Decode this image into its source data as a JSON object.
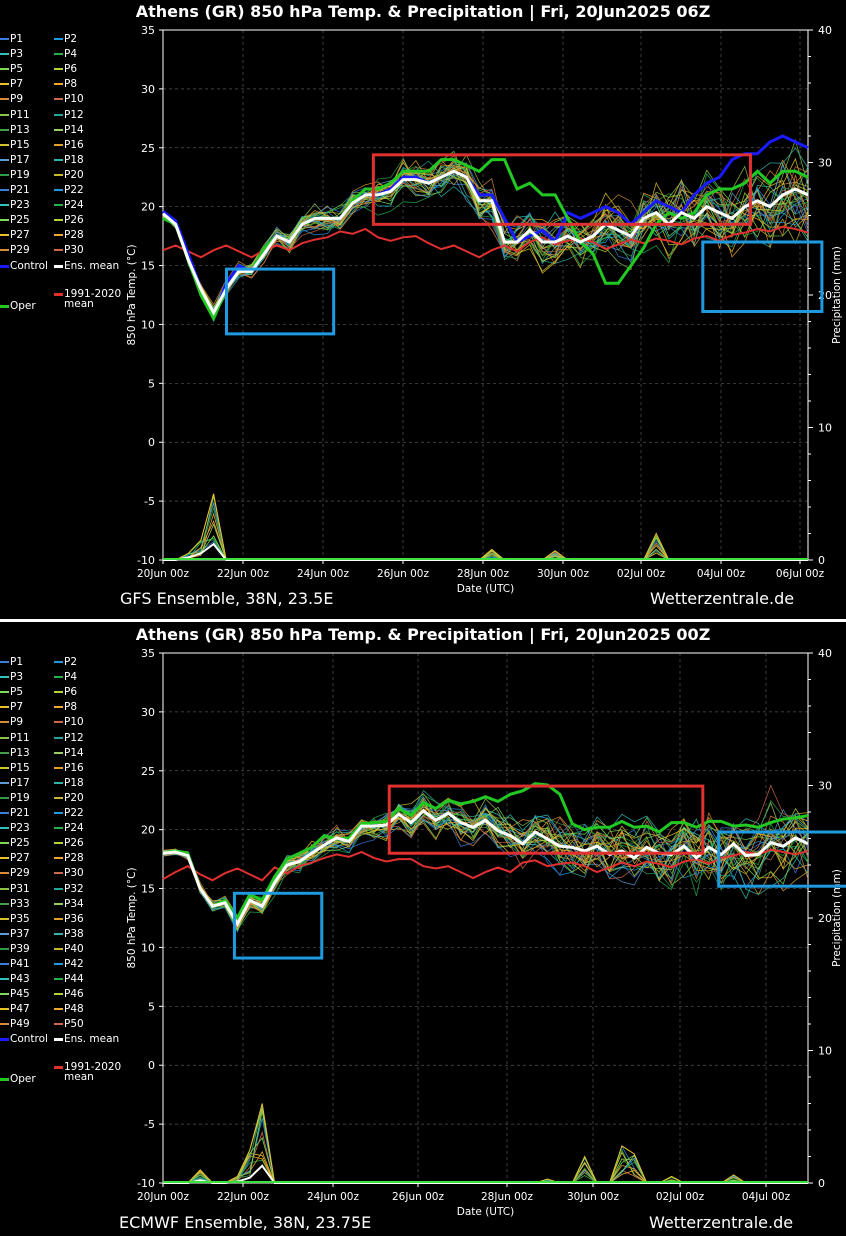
{
  "chart_data": [
    {
      "type": "line",
      "title": "Athens  (GR)  850 hPa Temp. & Precipitation | Fri, 20Jun2025 06Z",
      "ylabel": "850 hPa Temp. (°C)",
      "y2label": "Precipitation (mm)",
      "xlabel": "Date (UTC)",
      "ylim": [
        -10,
        35
      ],
      "y2lim": [
        0,
        40
      ],
      "y_ticks": [
        "35",
        "30",
        "25",
        "20",
        "15",
        "10",
        "5",
        "0",
        "-5",
        "-10"
      ],
      "y2_ticks": [
        "40",
        "30",
        "20",
        "10",
        "0"
      ],
      "x_ticks": [
        "20Jun 00z",
        "22Jun 00z",
        "24Jun 00z",
        "26Jun 00z",
        "28Jun 00z",
        "30Jun 00z",
        "02Jul 00z",
        "04Jul 00z",
        "06Jul 00z"
      ],
      "grid": true,
      "footer_left": "GFS Ensemble, 38N, 23.5E",
      "footer_right": "Wetterzentrale.de",
      "legend": {
        "members": [
          "P1",
          "P2",
          "P3",
          "P4",
          "P5",
          "P6",
          "P7",
          "P8",
          "P9",
          "P10",
          "P11",
          "P12",
          "P13",
          "P14",
          "P15",
          "P16",
          "P17",
          "P18",
          "P19",
          "P20",
          "P21",
          "P22",
          "P23",
          "P24",
          "P25",
          "P26",
          "P27",
          "P28",
          "P29",
          "P30"
        ],
        "control": "Control",
        "ens_mean": "Ens. mean",
        "clim": "1991-2020",
        "clim2": "mean",
        "oper": "Oper"
      },
      "series": {
        "control": [
          19.6,
          18.8,
          16,
          13,
          10.5,
          13.5,
          15,
          14.5,
          16.5,
          17.5,
          17,
          18.5,
          19,
          19,
          19,
          20.5,
          21,
          21,
          21.5,
          22.5,
          22.5,
          22,
          22.5,
          23,
          22.5,
          21,
          21,
          19,
          17,
          17.5,
          18,
          17,
          19.5,
          19,
          19.5,
          20,
          19.5,
          18.5,
          19.5,
          20.5,
          20,
          19.5,
          21,
          22,
          22.5,
          24,
          24.5,
          24.5,
          25.5,
          26,
          25.5,
          25
        ],
        "ens_mean": [
          19.4,
          18.5,
          15.5,
          13,
          11,
          13,
          14.5,
          14.5,
          16,
          17.5,
          17,
          18.5,
          19,
          19,
          19,
          20.3,
          21,
          21,
          21.3,
          22.3,
          22.3,
          22,
          22.5,
          23,
          22.5,
          20.5,
          20.5,
          17,
          17,
          18,
          17,
          17,
          17.5,
          17,
          17.5,
          18.5,
          18,
          17.5,
          19,
          19.5,
          18.5,
          19.5,
          19,
          20,
          19.5,
          19,
          20,
          20.5,
          20,
          21,
          21.5,
          21
        ],
        "oper": [
          19,
          18.5,
          15.5,
          12.5,
          10.5,
          13,
          14.5,
          14.5,
          16.5,
          17.5,
          17,
          18.5,
          19,
          19,
          19,
          20.5,
          21.5,
          21.5,
          22,
          23,
          23,
          23,
          24,
          24,
          23.5,
          23,
          24,
          24,
          21.5,
          22,
          21,
          21,
          19,
          17,
          16,
          13.5,
          13.5,
          15,
          16.5,
          18.5,
          19.5,
          19,
          19.5,
          21,
          21.5,
          21.5,
          22,
          23,
          22,
          23,
          23,
          22.5
        ],
        "clim": [
          16.3,
          16.7,
          16.2,
          15.7,
          16.3,
          16.7,
          16.2,
          15.7,
          16.3,
          16.7,
          16.3,
          16.9,
          17.2,
          17.4,
          17.9,
          17.7,
          18.1,
          17.4,
          17.1,
          17.4,
          17.5,
          16.9,
          16.4,
          16.7,
          16.2,
          15.7,
          16.3,
          16.7,
          16.2,
          17.0,
          17.4,
          16.8,
          17.1,
          17.3,
          17.0,
          16.4,
          16.8,
          17.2,
          16.9,
          17.3,
          17.1,
          16.8,
          17.3,
          17.5,
          17.1,
          17.6,
          17.8,
          18.1,
          17.9,
          18.3,
          18.1,
          17.8
        ],
        "precip_max": [
          0,
          0,
          0.5,
          1.5,
          5,
          0,
          0,
          0,
          0,
          0,
          0,
          0,
          0,
          0,
          0,
          0,
          0,
          0,
          0,
          0,
          0,
          0,
          0,
          0,
          0,
          0,
          0.8,
          0,
          0,
          0,
          0,
          0.7,
          0,
          0,
          0,
          0,
          0,
          0,
          0,
          2,
          0,
          0,
          0,
          0,
          0,
          0,
          0,
          0,
          0,
          0,
          0,
          0
        ],
        "precip_mean": [
          0,
          0,
          0.2,
          0.5,
          1.2,
          0,
          0,
          0,
          0,
          0,
          0,
          0,
          0,
          0,
          0,
          0,
          0,
          0,
          0,
          0,
          0,
          0,
          0,
          0,
          0,
          0,
          0,
          0,
          0,
          0,
          0,
          0,
          0,
          0,
          0,
          0,
          0,
          0,
          0,
          0,
          0,
          0,
          0,
          0,
          0,
          0,
          0,
          0,
          0,
          0,
          0,
          0
        ]
      },
      "boxes": [
        {
          "color": "#e03030",
          "x0": 5.3,
          "x1": 14.8,
          "y0": 18.5,
          "y1": 24.4
        },
        {
          "color": "#1e9be0",
          "x0": 1.6,
          "x1": 4.3,
          "y0": 9.2,
          "y1": 14.7
        },
        {
          "color": "#1e9be0",
          "x0": 13.6,
          "x1": 16.6,
          "y0": 11.1,
          "y1": 17
        },
        {
          "color": "#e03030",
          "x0": 17.5,
          "x1": 21.5,
          "y0": 18.9,
          "y1": 24
        }
      ]
    },
    {
      "type": "line",
      "title": "Athens  (GR)  850 hPa Temp. & Precipitation | Fri, 20Jun2025 00Z",
      "ylabel": "850 hPa Temp. (°C)",
      "y2label": "Precipitation (mm)",
      "xlabel": "Date (UTC)",
      "ylim": [
        -10,
        35
      ],
      "y2lim": [
        0,
        40
      ],
      "y_ticks": [
        "35",
        "30",
        "25",
        "20",
        "15",
        "10",
        "5",
        "0",
        "-5",
        "-10"
      ],
      "y2_ticks": [
        "40",
        "30",
        "20",
        "10",
        "0"
      ],
      "x_ticks": [
        "20Jun 00z",
        "22Jun 00z",
        "24Jun 00z",
        "26Jun 00z",
        "28Jun 00z",
        "30Jun 00z",
        "02Jul 00z",
        "04Jul 00z"
      ],
      "grid": true,
      "footer_left": "ECMWF Ensemble, 38N, 23.75E",
      "footer_right": "Wetterzentrale.de",
      "legend": {
        "members": [
          "P1",
          "P2",
          "P3",
          "P4",
          "P5",
          "P6",
          "P7",
          "P8",
          "P9",
          "P10",
          "P11",
          "P12",
          "P13",
          "P14",
          "P15",
          "P16",
          "P17",
          "P18",
          "P19",
          "P20",
          "P21",
          "P22",
          "P23",
          "P24",
          "P25",
          "P26",
          "P27",
          "P28",
          "P29",
          "P30",
          "P31",
          "P32",
          "P33",
          "P34",
          "P35",
          "P36",
          "P37",
          "P38",
          "P39",
          "P40",
          "P41",
          "P42",
          "P43",
          "P44",
          "P45",
          "P46",
          "P47",
          "P48",
          "P49",
          "P50"
        ],
        "control": "Control",
        "ens_mean": "Ens. mean",
        "clim": "1991-2020",
        "clim2": "mean",
        "oper": "Oper"
      },
      "series": {
        "ens_mean": [
          18,
          18.1,
          17.8,
          15,
          13.5,
          13.8,
          12,
          14,
          13.5,
          15.5,
          17,
          17.3,
          18,
          18.7,
          19.3,
          19,
          20.3,
          20.3,
          20.4,
          21.3,
          20.6,
          21.6,
          20.8,
          21.4,
          20.6,
          20.2,
          20.8,
          19.9,
          19.5,
          18.8,
          19.8,
          19.2,
          18.6,
          18.5,
          18.2,
          18.6,
          17.9,
          18.2,
          17.6,
          18.5,
          18,
          17.9,
          18.6,
          17.6,
          18.5,
          17.9,
          18.8,
          17.8,
          17.9,
          18.9,
          18.6,
          19.3,
          18.8
        ],
        "oper": [
          18,
          18.2,
          18,
          15,
          13.5,
          14,
          12.5,
          14.5,
          14,
          16,
          17.5,
          18,
          18.5,
          19.5,
          19.2,
          19.3,
          20.5,
          20.6,
          20.7,
          21.8,
          21.2,
          22.3,
          21.8,
          22.5,
          22.2,
          22.4,
          22.8,
          22.4,
          23,
          23.3,
          23.9,
          23.8,
          23,
          20.5,
          20,
          20.2,
          20.2,
          20.7,
          20.2,
          20.3,
          19.8,
          20.6,
          20.6,
          20.2,
          20.7,
          20.7,
          20.3,
          20.4,
          20.2,
          20.6,
          20.9,
          21,
          21.2
        ],
        "clim": [
          15.8,
          16.4,
          16.9,
          16.2,
          15.7,
          16.3,
          16.7,
          16.2,
          15.7,
          16.8,
          16.3,
          16.9,
          17.2,
          17.6,
          17.9,
          17.7,
          18.1,
          17.6,
          17.3,
          17.5,
          17.5,
          16.9,
          16.7,
          16.9,
          16.4,
          15.9,
          16.4,
          16.8,
          16.4,
          17.2,
          17.4,
          16.9,
          17.1,
          17.2,
          16.9,
          16.4,
          16.8,
          17.2,
          16.9,
          17.3,
          17.1,
          16.8,
          17.3,
          17.5,
          17.1,
          17.6,
          17.8,
          18.1,
          17.9,
          18.3,
          18.1,
          17.9,
          18.2
        ],
        "precip_max": [
          0,
          0,
          0,
          1,
          0,
          0,
          0.5,
          2.5,
          6,
          0,
          0,
          0,
          0,
          0,
          0,
          0,
          0,
          0,
          0,
          0,
          0,
          0,
          0,
          0,
          0,
          0,
          0,
          0,
          0,
          0,
          0,
          0.3,
          0,
          0,
          2,
          0,
          0,
          2.8,
          2.2,
          0,
          0,
          0.5,
          0,
          0,
          0,
          0,
          0.6,
          0,
          0,
          0,
          0,
          0,
          0
        ],
        "precip_mean": [
          0,
          0,
          0,
          0.2,
          0,
          0,
          0.1,
          0.4,
          1.3,
          0,
          0,
          0,
          0,
          0,
          0,
          0,
          0,
          0,
          0,
          0,
          0,
          0,
          0,
          0,
          0,
          0,
          0,
          0,
          0,
          0,
          0,
          0,
          0,
          0,
          0,
          0,
          0,
          0,
          0,
          0,
          0,
          0,
          0,
          0,
          0,
          0,
          0,
          0,
          0,
          0,
          0,
          0,
          0
        ]
      },
      "boxes": [
        {
          "color": "#e03030",
          "x0": 5.7,
          "x1": 13.6,
          "y0": 18,
          "y1": 23.7
        },
        {
          "color": "#1e9be0",
          "x0": 1.8,
          "x1": 4.0,
          "y0": 9.1,
          "y1": 14.6
        },
        {
          "color": "#1e9be0",
          "x0": 14.0,
          "x1": 18.7,
          "y0": 15.2,
          "y1": 19.8
        }
      ]
    }
  ]
}
